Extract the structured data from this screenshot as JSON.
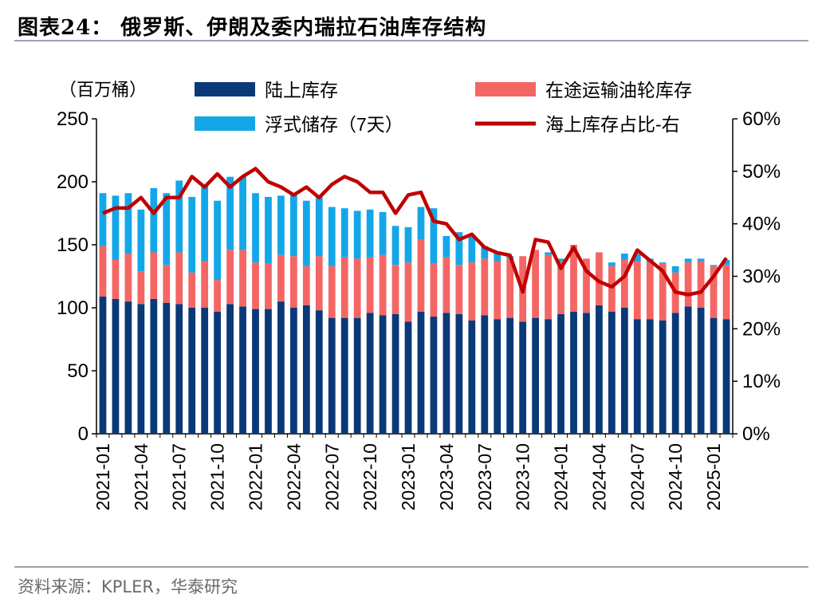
{
  "title": "图表24：  俄罗斯、伊朗及委内瑞拉石油库存结构",
  "source": "资料来源：KPLER，华泰研究",
  "colors": {
    "onshore": "#0a3978",
    "transit": "#f46664",
    "floating": "#14a7e8",
    "share_line": "#c00000"
  },
  "chart_data": {
    "type": "bar",
    "stacked": true,
    "unit_label": "（百万桶）",
    "y_left_ticks": [
      0,
      50,
      100,
      150,
      200,
      250
    ],
    "y_left_range": [
      0,
      250
    ],
    "y_right_ticks": [
      "0%",
      "10%",
      "20%",
      "30%",
      "40%",
      "50%",
      "60%"
    ],
    "y_right_range": [
      0,
      0.6
    ],
    "x_tick_labels": [
      "2021-01",
      "2021-04",
      "2021-07",
      "2021-10",
      "2022-01",
      "2022-04",
      "2022-07",
      "2022-10",
      "2023-01",
      "2023-04",
      "2023-07",
      "2023-10",
      "2024-01",
      "2024-04",
      "2024-07",
      "2024-10",
      "2025-01"
    ],
    "x": [
      "2021-01",
      "2021-02",
      "2021-03",
      "2021-04",
      "2021-05",
      "2021-06",
      "2021-07",
      "2021-08",
      "2021-09",
      "2021-10",
      "2021-11",
      "2021-12",
      "2022-01",
      "2022-02",
      "2022-03",
      "2022-04",
      "2022-05",
      "2022-06",
      "2022-07",
      "2022-08",
      "2022-09",
      "2022-10",
      "2022-11",
      "2022-12",
      "2023-01",
      "2023-02",
      "2023-03",
      "2023-04",
      "2023-05",
      "2023-06",
      "2023-07",
      "2023-08",
      "2023-09",
      "2023-10",
      "2023-11",
      "2023-12",
      "2024-01",
      "2024-02",
      "2024-03",
      "2024-04",
      "2024-05",
      "2024-06",
      "2024-07",
      "2024-08",
      "2024-09",
      "2024-10",
      "2024-11",
      "2024-12",
      "2025-01",
      "2025-02"
    ],
    "legend_position": "top",
    "series": [
      {
        "name": "陆上库存",
        "kind": "bar",
        "axis": "left",
        "values": [
          109,
          107,
          105,
          103,
          107,
          104,
          103,
          100,
          100,
          97,
          103,
          101,
          99,
          99,
          105,
          100,
          102,
          98,
          92,
          92,
          92,
          96,
          94,
          95,
          89,
          97,
          93,
          96,
          95,
          90,
          94,
          91,
          92,
          89,
          92,
          91,
          95,
          97,
          96,
          102,
          97,
          100,
          91,
          91,
          90,
          96,
          101,
          100,
          92,
          91
        ]
      },
      {
        "name": "在途运输油轮库存",
        "kind": "bar",
        "axis": "left",
        "values": [
          40,
          31,
          38,
          26,
          37,
          30,
          41,
          28,
          37,
          25,
          43,
          45,
          37,
          36,
          37,
          41,
          31,
          43,
          41,
          48,
          47,
          44,
          48,
          39,
          47,
          57,
          42,
          44,
          39,
          46,
          45,
          46,
          47,
          52,
          54,
          51,
          42,
          53,
          43,
          42,
          36,
          38,
          46,
          45,
          45,
          32,
          35,
          37,
          41,
          43
        ]
      },
      {
        "name": "浮式储存（7天）",
        "kind": "bar",
        "axis": "left",
        "values": [
          42,
          51,
          48,
          49,
          51,
          57,
          57,
          60,
          61,
          63,
          58,
          58,
          55,
          53,
          47,
          50,
          52,
          48,
          47,
          39,
          38,
          38,
          34,
          31,
          28,
          26,
          44,
          17,
          26,
          21,
          10,
          7,
          2,
          0,
          0,
          2,
          2,
          0,
          0,
          0,
          3,
          5,
          6,
          3,
          1,
          5,
          3,
          2,
          1,
          4
        ]
      },
      {
        "name": "海上库存占比-右",
        "kind": "line",
        "axis": "right",
        "values": [
          0.42,
          0.43,
          0.43,
          0.45,
          0.42,
          0.45,
          0.45,
          0.49,
          0.47,
          0.495,
          0.47,
          0.49,
          0.505,
          0.48,
          0.47,
          0.455,
          0.47,
          0.45,
          0.475,
          0.49,
          0.48,
          0.46,
          0.46,
          0.42,
          0.455,
          0.46,
          0.405,
          0.4,
          0.37,
          0.38,
          0.355,
          0.345,
          0.34,
          0.27,
          0.37,
          0.365,
          0.315,
          0.355,
          0.31,
          0.29,
          0.28,
          0.3,
          0.35,
          0.33,
          0.31,
          0.27,
          0.265,
          0.27,
          0.3,
          0.335
        ]
      }
    ]
  }
}
